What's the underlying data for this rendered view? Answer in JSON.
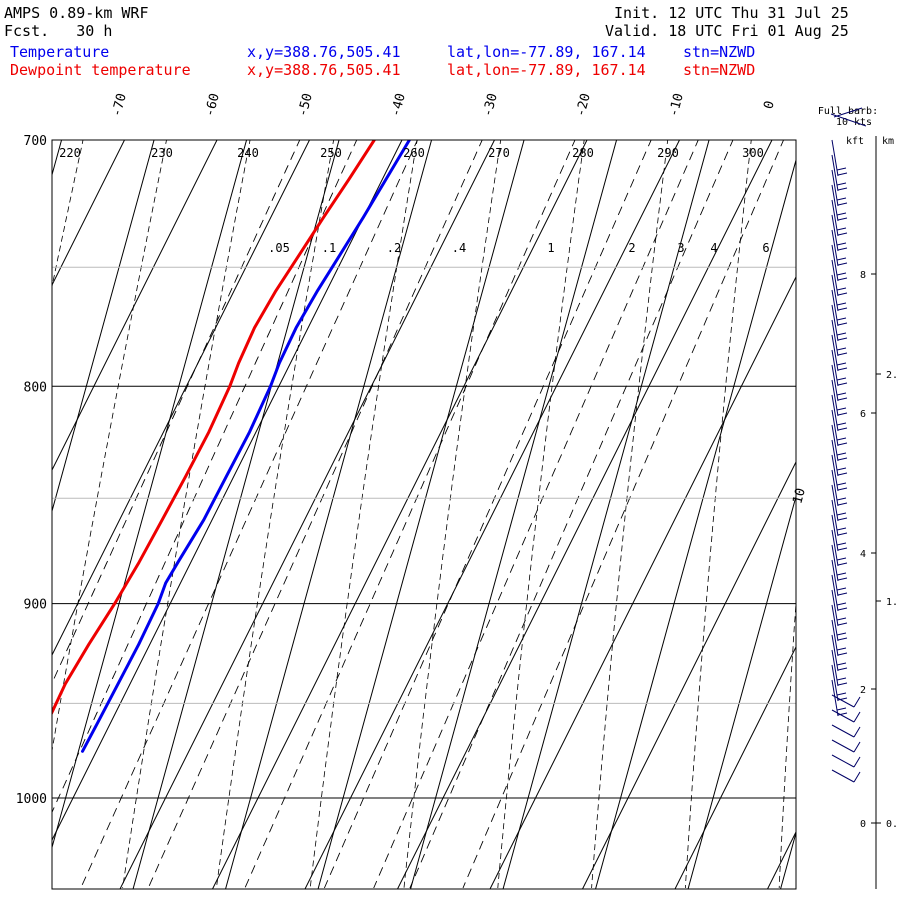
{
  "header": {
    "model": "AMPS 0.89-km WRF",
    "fcst_label": "Fcst.",
    "fcst_value": "30 h",
    "init_label": "Init.",
    "init_value": "12 UTC Thu 31 Jul 25",
    "valid_label": "Valid.",
    "valid_value": "18 UTC Fri 01 Aug 25"
  },
  "legend": [
    {
      "name": "Temperature",
      "xy": "x,y=388.76,505.41",
      "latlon": "lat,lon=-77.89, 167.14",
      "stn": "stn=NZWD",
      "color": "#0000ee"
    },
    {
      "name": "Dewpoint temperature",
      "xy": "x,y=388.76,505.41",
      "latlon": "lat,lon=-77.89, 167.14",
      "stn": "stn=NZWD",
      "color": "#ee0000"
    }
  ],
  "wind_panel": {
    "title_line1": "Full barb:",
    "title_line2": "10 kts",
    "kft_label": "kft",
    "km_label": "km",
    "kft_ticks": [
      "8",
      "6",
      "4",
      "2",
      "0"
    ],
    "km_ticks": [
      "2.",
      "1.",
      "0."
    ]
  },
  "chart_data": {
    "type": "line",
    "diagram": "skew-T log-P",
    "y_axis": {
      "label": "",
      "scale": "log",
      "range": [
        1040,
        700
      ],
      "ticks": [
        700,
        800,
        900,
        1000
      ]
    },
    "isotherm_labels": [
      "-70",
      "-60",
      "-50",
      "-40",
      "-30",
      "-20",
      "-10",
      "0",
      "10"
    ],
    "dry_adiabat_labels": [
      "220",
      "230",
      "240",
      "250",
      "260",
      "270",
      "280",
      "290",
      "300"
    ],
    "mixing_ratio_labels": [
      ".05",
      ".1",
      ".2",
      ".4",
      "1",
      "2",
      "3",
      "4",
      "6"
    ],
    "grid": true,
    "series": [
      {
        "name": "Temperature",
        "color": "#0000ee",
        "p": [
          700,
          715,
          730,
          745,
          760,
          775,
          790,
          800,
          820,
          840,
          860,
          880,
          890,
          900,
          920,
          940,
          960,
          975
        ],
        "t": [
          -39.2,
          -39.6,
          -40.0,
          -40.5,
          -41.0,
          -41.3,
          -41.2,
          -40.9,
          -40.7,
          -40.8,
          -40.9,
          -41.4,
          -41.6,
          -41.3,
          -41.2,
          -41.3,
          -41.4,
          -41.5
        ]
      },
      {
        "name": "Dewpoint temperature",
        "color": "#ee0000",
        "p": [
          700,
          715,
          730,
          745,
          760,
          775,
          790,
          800,
          820,
          840,
          860,
          880,
          900,
          920,
          940,
          955,
          975
        ],
        "t": [
          -43.0,
          -43.6,
          -44.3,
          -44.9,
          -45.5,
          -45.8,
          -45.6,
          -45.3,
          -45.1,
          -45.2,
          -45.4,
          -45.6,
          -46.0,
          -46.6,
          -47.0,
          -46.9,
          -47.2
        ]
      }
    ]
  }
}
